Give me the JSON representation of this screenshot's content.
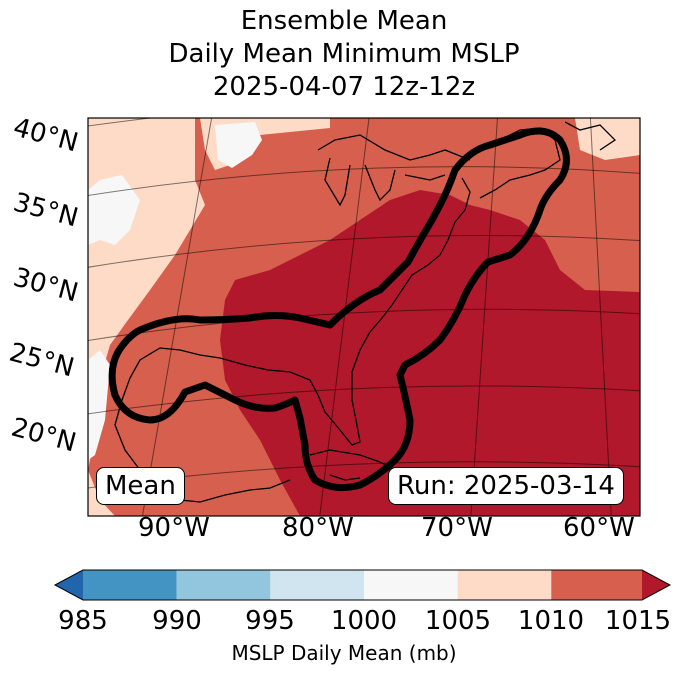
{
  "title": {
    "line1": "Ensemble Mean",
    "line2": "Daily Mean Minimum MSLP",
    "line3": "2025-04-07 12z-12z"
  },
  "map": {
    "lat_labels": [
      "40°N",
      "35°N",
      "30°N",
      "25°N",
      "20°N"
    ],
    "lon_labels": [
      "90°W",
      "80°W",
      "70°W",
      "60°W"
    ],
    "mean_label": "Mean",
    "run_label": "Run: 2025-03-14"
  },
  "colorbar": {
    "ticks": [
      "985",
      "990",
      "995",
      "1000",
      "1005",
      "1010",
      "1015"
    ],
    "label": "MSLP Daily Mean (mb)",
    "colors": [
      "#2166ac",
      "#4393c3",
      "#92c5de",
      "#d1e5f0",
      "#f7f7f7",
      "#fddbc7",
      "#d6604d",
      "#b2182b"
    ]
  },
  "field_colors": {
    "c1000": "#f7f7f7",
    "c1005": "#fddbc7",
    "c1010": "#d6604d",
    "c1015": "#b2182b"
  }
}
